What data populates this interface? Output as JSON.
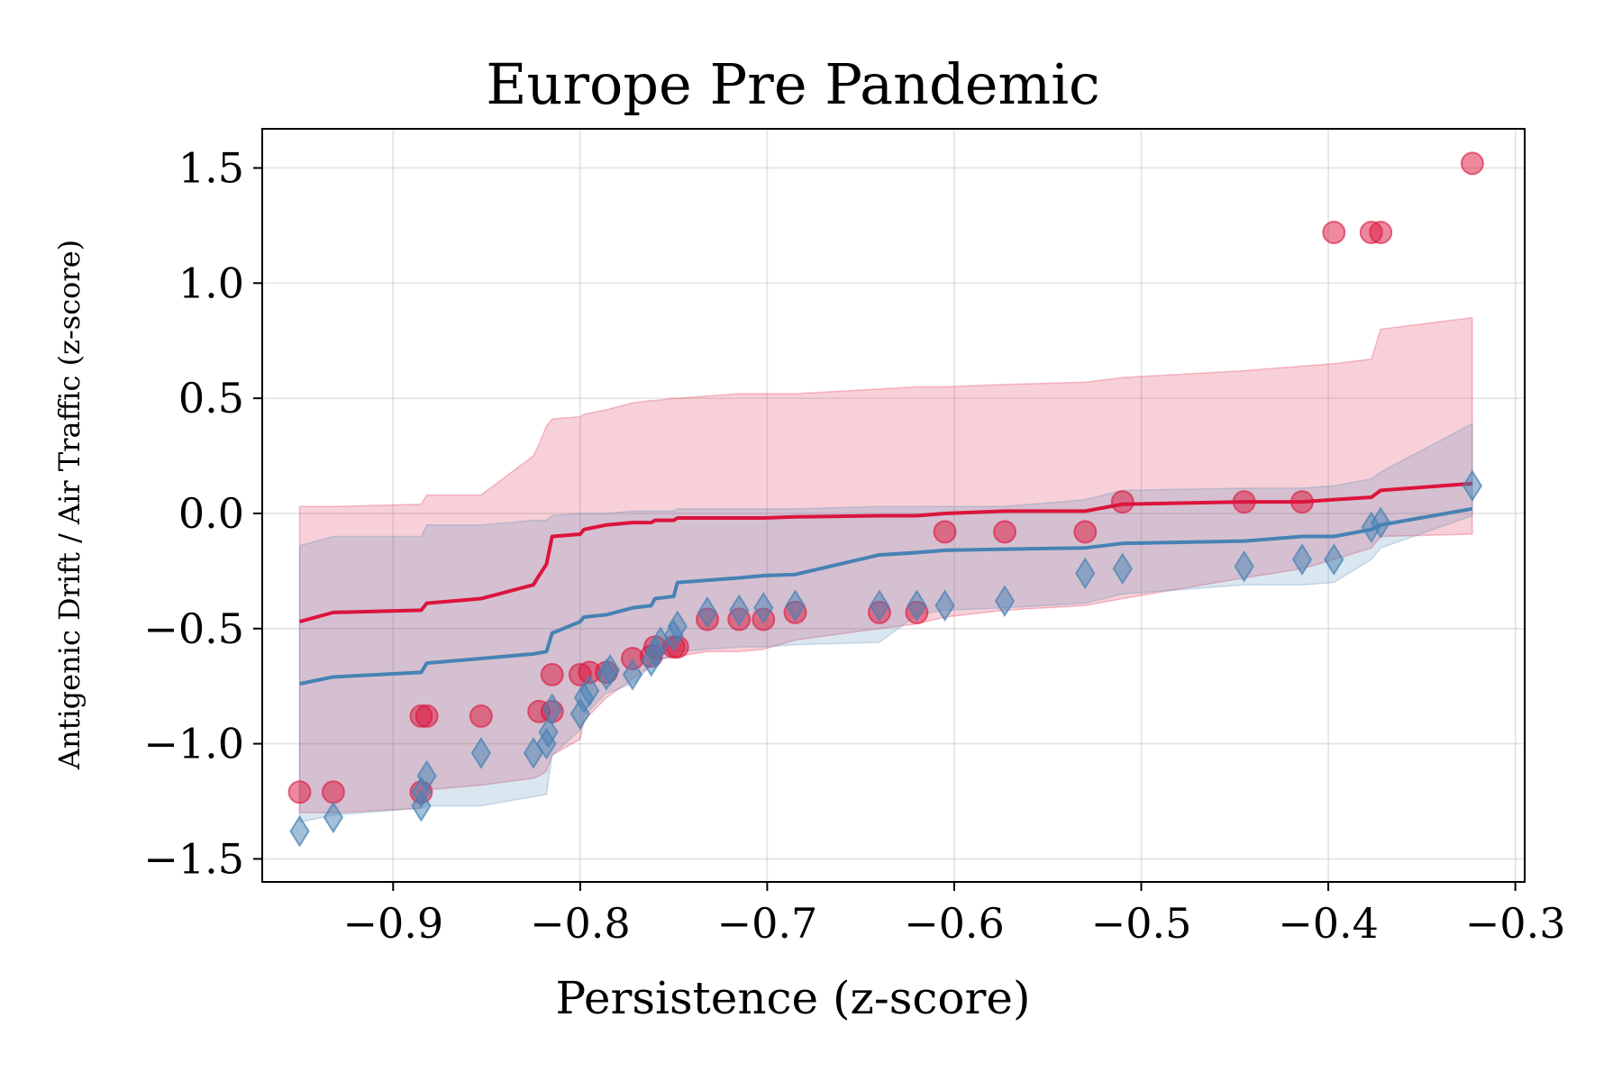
{
  "chart_data": {
    "type": "scatter",
    "title": "Europe Pre Pandemic",
    "xlabel": "Persistence (z-score)",
    "ylabel": "Antigenic Drift / Air Traffic (z-score)",
    "xlim": [
      -0.97,
      -0.295
    ],
    "ylim": [
      -1.6,
      1.67
    ],
    "xticks": [
      -0.9,
      -0.8,
      -0.7,
      -0.6,
      -0.5,
      -0.4,
      -0.3
    ],
    "xtick_labels": [
      "−0.9",
      "−0.8",
      "−0.7",
      "−0.6",
      "−0.5",
      "−0.4",
      "−0.3"
    ],
    "yticks": [
      1.5,
      1.0,
      0.5,
      0.0,
      -0.5,
      -1.0,
      -1.5
    ],
    "ytick_labels": [
      "1.5",
      "1.0",
      "0.5",
      "0.0",
      "−0.5",
      "−1.0",
      "−1.5"
    ],
    "grid": true,
    "colors": {
      "red": "#dc143c",
      "blue": "#4682b4"
    },
    "series": [
      {
        "color": "#dc143c",
        "marker": "circle",
        "points": [
          [
            -0.95,
            -1.21
          ],
          [
            -0.932,
            -1.21
          ],
          [
            -0.885,
            -1.21
          ],
          [
            -0.885,
            -0.88
          ],
          [
            -0.882,
            -0.88
          ],
          [
            -0.853,
            -0.88
          ],
          [
            -0.822,
            -0.86
          ],
          [
            -0.815,
            -0.86
          ],
          [
            -0.815,
            -0.7
          ],
          [
            -0.8,
            -0.7
          ],
          [
            -0.795,
            -0.69
          ],
          [
            -0.786,
            -0.69
          ],
          [
            -0.772,
            -0.63
          ],
          [
            -0.762,
            -0.62
          ],
          [
            -0.76,
            -0.58
          ],
          [
            -0.75,
            -0.58
          ],
          [
            -0.748,
            -0.58
          ],
          [
            -0.732,
            -0.46
          ],
          [
            -0.715,
            -0.46
          ],
          [
            -0.702,
            -0.46
          ],
          [
            -0.685,
            -0.43
          ],
          [
            -0.64,
            -0.43
          ],
          [
            -0.62,
            -0.43
          ],
          [
            -0.605,
            -0.08
          ],
          [
            -0.573,
            -0.08
          ],
          [
            -0.53,
            -0.08
          ],
          [
            -0.51,
            0.05
          ],
          [
            -0.445,
            0.05
          ],
          [
            -0.414,
            0.05
          ],
          [
            -0.397,
            1.22
          ],
          [
            -0.377,
            1.22
          ],
          [
            -0.372,
            1.22
          ],
          [
            -0.323,
            1.52
          ]
        ],
        "line_x": [
          -0.95,
          -0.932,
          -0.885,
          -0.882,
          -0.853,
          -0.825,
          -0.822,
          -0.818,
          -0.815,
          -0.8,
          -0.798,
          -0.786,
          -0.772,
          -0.762,
          -0.76,
          -0.75,
          -0.748,
          -0.732,
          -0.715,
          -0.702,
          -0.685,
          -0.64,
          -0.62,
          -0.605,
          -0.573,
          -0.53,
          -0.51,
          -0.445,
          -0.414,
          -0.397,
          -0.377,
          -0.372,
          -0.323
        ],
        "line_y": [
          -0.47,
          -0.43,
          -0.42,
          -0.39,
          -0.37,
          -0.31,
          -0.27,
          -0.22,
          -0.1,
          -0.09,
          -0.07,
          -0.05,
          -0.04,
          -0.04,
          -0.03,
          -0.03,
          -0.02,
          -0.02,
          -0.02,
          -0.02,
          -0.015,
          -0.01,
          -0.01,
          0.0,
          0.01,
          0.01,
          0.04,
          0.05,
          0.05,
          0.06,
          0.07,
          0.1,
          0.13
        ],
        "band_upper": [
          0.03,
          0.03,
          0.04,
          0.08,
          0.08,
          0.25,
          0.3,
          0.38,
          0.41,
          0.42,
          0.43,
          0.45,
          0.48,
          0.49,
          0.49,
          0.5,
          0.5,
          0.51,
          0.52,
          0.52,
          0.52,
          0.54,
          0.55,
          0.55,
          0.56,
          0.57,
          0.59,
          0.62,
          0.64,
          0.65,
          0.67,
          0.8,
          0.85
        ],
        "band_lower": [
          -1.3,
          -1.3,
          -1.28,
          -1.2,
          -1.18,
          -1.15,
          -1.14,
          -1.12,
          -1.05,
          -0.98,
          -0.9,
          -0.8,
          -0.72,
          -0.66,
          -0.64,
          -0.62,
          -0.62,
          -0.6,
          -0.6,
          -0.59,
          -0.55,
          -0.5,
          -0.48,
          -0.45,
          -0.42,
          -0.4,
          -0.37,
          -0.28,
          -0.24,
          -0.2,
          -0.15,
          -0.1,
          -0.09
        ]
      },
      {
        "color": "#4682b4",
        "marker": "diamond",
        "points": [
          [
            -0.95,
            -1.38
          ],
          [
            -0.932,
            -1.32
          ],
          [
            -0.885,
            -1.27
          ],
          [
            -0.885,
            -1.21
          ],
          [
            -0.882,
            -1.14
          ],
          [
            -0.853,
            -1.04
          ],
          [
            -0.825,
            -1.04
          ],
          [
            -0.818,
            -1.0
          ],
          [
            -0.817,
            -0.95
          ],
          [
            -0.815,
            -0.85
          ],
          [
            -0.8,
            -0.87
          ],
          [
            -0.798,
            -0.8
          ],
          [
            -0.795,
            -0.77
          ],
          [
            -0.786,
            -0.7
          ],
          [
            -0.784,
            -0.68
          ],
          [
            -0.772,
            -0.7
          ],
          [
            -0.762,
            -0.64
          ],
          [
            -0.76,
            -0.6
          ],
          [
            -0.757,
            -0.56
          ],
          [
            -0.75,
            -0.53
          ],
          [
            -0.748,
            -0.49
          ],
          [
            -0.732,
            -0.43
          ],
          [
            -0.715,
            -0.42
          ],
          [
            -0.702,
            -0.41
          ],
          [
            -0.685,
            -0.4
          ],
          [
            -0.64,
            -0.4
          ],
          [
            -0.62,
            -0.4
          ],
          [
            -0.605,
            -0.4
          ],
          [
            -0.573,
            -0.38
          ],
          [
            -0.53,
            -0.26
          ],
          [
            -0.51,
            -0.24
          ],
          [
            -0.445,
            -0.23
          ],
          [
            -0.414,
            -0.2
          ],
          [
            -0.397,
            -0.2
          ],
          [
            -0.377,
            -0.06
          ],
          [
            -0.372,
            -0.04
          ],
          [
            -0.323,
            0.12
          ]
        ],
        "line_x": [
          -0.95,
          -0.932,
          -0.885,
          -0.882,
          -0.853,
          -0.825,
          -0.818,
          -0.815,
          -0.8,
          -0.798,
          -0.786,
          -0.772,
          -0.762,
          -0.76,
          -0.75,
          -0.748,
          -0.732,
          -0.715,
          -0.702,
          -0.685,
          -0.64,
          -0.62,
          -0.605,
          -0.573,
          -0.53,
          -0.51,
          -0.445,
          -0.414,
          -0.397,
          -0.377,
          -0.372,
          -0.323
        ],
        "line_y": [
          -0.74,
          -0.71,
          -0.69,
          -0.65,
          -0.63,
          -0.61,
          -0.6,
          -0.52,
          -0.47,
          -0.45,
          -0.44,
          -0.41,
          -0.4,
          -0.37,
          -0.36,
          -0.3,
          -0.29,
          -0.28,
          -0.27,
          -0.265,
          -0.18,
          -0.17,
          -0.16,
          -0.155,
          -0.15,
          -0.13,
          -0.12,
          -0.1,
          -0.1,
          -0.07,
          -0.05,
          0.02
        ],
        "band_upper": [
          -0.14,
          -0.1,
          -0.1,
          -0.05,
          -0.05,
          -0.03,
          -0.03,
          -0.01,
          0.0,
          0.0,
          0.0,
          0.01,
          0.01,
          0.01,
          0.01,
          0.02,
          0.02,
          0.02,
          0.02,
          0.02,
          0.03,
          0.03,
          0.03,
          0.03,
          0.06,
          0.1,
          0.11,
          0.11,
          0.12,
          0.15,
          0.18,
          0.39
        ],
        "band_lower": [
          -1.34,
          -1.31,
          -1.28,
          -1.27,
          -1.27,
          -1.23,
          -1.22,
          -1.05,
          -0.94,
          -0.88,
          -0.78,
          -0.74,
          -0.66,
          -0.64,
          -0.62,
          -0.6,
          -0.59,
          -0.58,
          -0.58,
          -0.57,
          -0.56,
          -0.44,
          -0.42,
          -0.41,
          -0.39,
          -0.35,
          -0.31,
          -0.31,
          -0.3,
          -0.2,
          -0.15,
          -0.01
        ]
      }
    ]
  }
}
